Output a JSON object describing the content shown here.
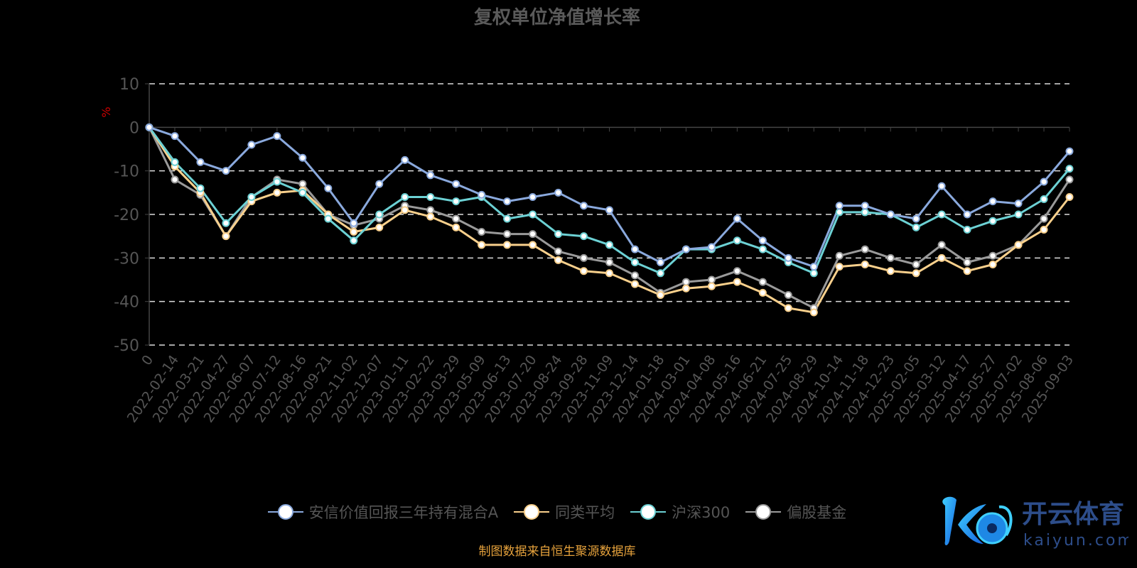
{
  "title": "复权单位净值增长率",
  "source_note": "制图数据来自恒生聚源数据库",
  "watermark": {
    "text_cn": "开云体育",
    "text_en": "kaiyun.com"
  },
  "chart_data": {
    "type": "line",
    "title": "复权单位净值增长率",
    "ylabel": "%",
    "ylim": [
      -50,
      10
    ],
    "yticks": [
      10,
      0,
      -10,
      -20,
      -30,
      -40,
      -50
    ],
    "grid": true,
    "legend_position": "bottom",
    "categories": [
      "0",
      "2022-02-14",
      "2022-03-21",
      "2022-04-27",
      "2022-06-07",
      "2022-07-12",
      "2022-08-16",
      "2022-09-21",
      "2022-11-02",
      "2022-12-07",
      "2023-01-11",
      "2023-02-22",
      "2023-03-29",
      "2023-05-09",
      "2023-06-13",
      "2023-07-20",
      "2023-08-24",
      "2023-09-28",
      "2023-11-09",
      "2023-12-14",
      "2024-01-18",
      "2024-03-01",
      "2024-04-08",
      "2024-05-16",
      "2024-06-21",
      "2024-07-25",
      "2024-08-29",
      "2024-10-14",
      "2024-11-18",
      "2024-12-23",
      "2025-02-05",
      "2025-03-12",
      "2025-04-17",
      "2025-05-27",
      "2025-07-02",
      "2025-08-06",
      "2025-09-03"
    ],
    "series": [
      {
        "name": "安信价值回报三年持有混合A",
        "color": "#8aa9dd",
        "values": [
          0,
          -2,
          -8,
          -10,
          -4,
          -2,
          -7,
          -14,
          -22,
          -13,
          -7.5,
          -11,
          -13,
          -15.5,
          -17,
          -16,
          -15,
          -18,
          -19,
          -28,
          -31,
          -28,
          -27.5,
          -21,
          -26,
          -30,
          -32,
          -18,
          -18,
          -20,
          -21,
          -13.5,
          -20,
          -17,
          -17.5,
          -12.5,
          -5.5
        ]
      },
      {
        "name": "同类平均",
        "color": "#f9d08c",
        "values": [
          0,
          -9,
          -15,
          -25,
          -17,
          -15,
          -14.5,
          -20,
          -24,
          -23,
          -19,
          -20.5,
          -23,
          -27,
          -27,
          -27,
          -30.5,
          -33,
          -33.5,
          -36,
          -38.5,
          -37,
          -36.5,
          -35.5,
          -38,
          -41.5,
          -42.5,
          -32,
          -31.5,
          -33,
          -33.5,
          -30,
          -33,
          -31.5,
          -27,
          -23.5,
          -16
        ]
      },
      {
        "name": "沪深300",
        "color": "#6cd1d4",
        "values": [
          0,
          -8,
          -14,
          -22,
          -16,
          -12.5,
          -15,
          -21,
          -26,
          -20,
          -16,
          -16,
          -17,
          -16,
          -21,
          -20,
          -24.5,
          -25,
          -27,
          -31,
          -33.5,
          -28,
          -28,
          -26,
          -28,
          -31,
          -33.5,
          -19.5,
          -19.5,
          -20,
          -23,
          -20,
          -23.5,
          -21.5,
          -20,
          -16.5,
          -9.5
        ]
      },
      {
        "name": "偏股基金",
        "color": "#9a9a9a",
        "values": [
          0,
          -12,
          -15.5,
          -25,
          -16,
          -12,
          -13,
          -20,
          -22.5,
          -21,
          -18,
          -19,
          -21,
          -24,
          -24.5,
          -24.5,
          -28.5,
          -30,
          -31,
          -34,
          -38,
          -35.5,
          -35,
          -33,
          -35.5,
          -38.5,
          -41.5,
          -29.5,
          -28,
          -30,
          -31.5,
          -27,
          -31,
          -29.5,
          -27,
          -21,
          -12
        ]
      }
    ]
  }
}
